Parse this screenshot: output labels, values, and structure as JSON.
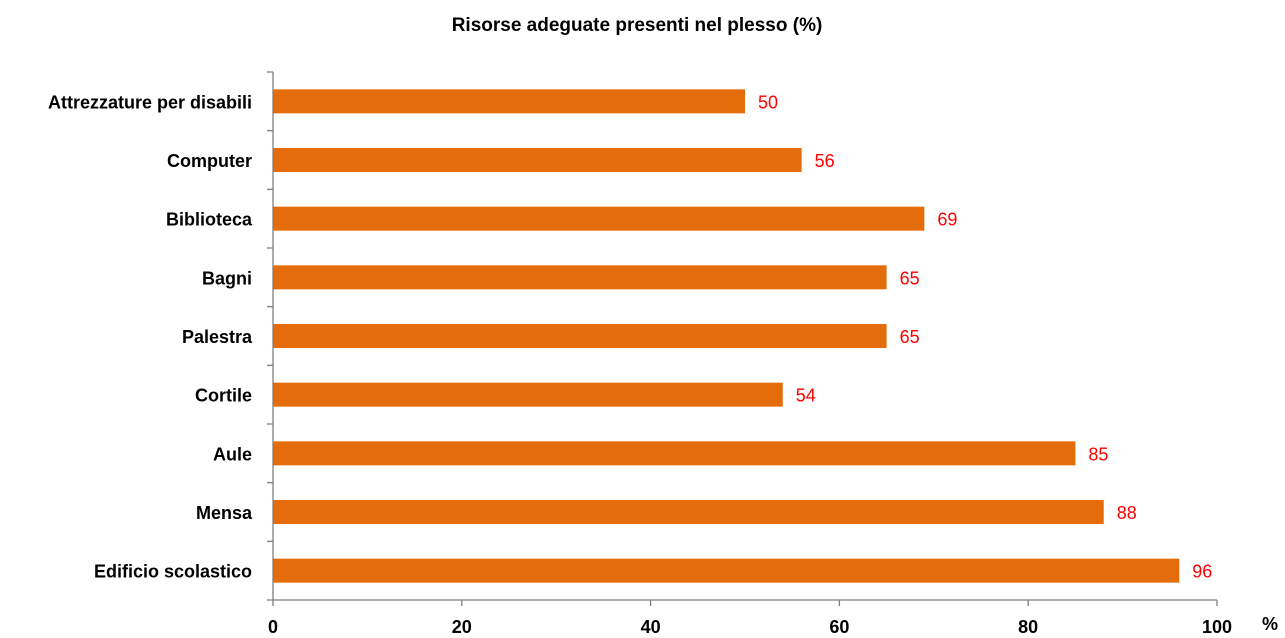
{
  "chart_data": {
    "type": "bar",
    "orientation": "horizontal",
    "title": "Risorse adeguate presenti nel plesso  (%)",
    "categories": [
      "Attrezzature per disabili",
      "Computer",
      "Biblioteca",
      "Bagni",
      "Palestra",
      "Cortile",
      "Aule",
      "Mensa",
      "Edificio scolastico"
    ],
    "values": [
      50,
      56,
      69,
      65,
      65,
      54,
      85,
      88,
      96
    ],
    "x_ticks": [
      0,
      20,
      40,
      60,
      80,
      100
    ],
    "xlim": [
      0,
      100
    ],
    "xlabel": "%",
    "ylabel": "",
    "grid": false,
    "bar_color": "#E46C0A",
    "label_color": "#FF0000"
  }
}
